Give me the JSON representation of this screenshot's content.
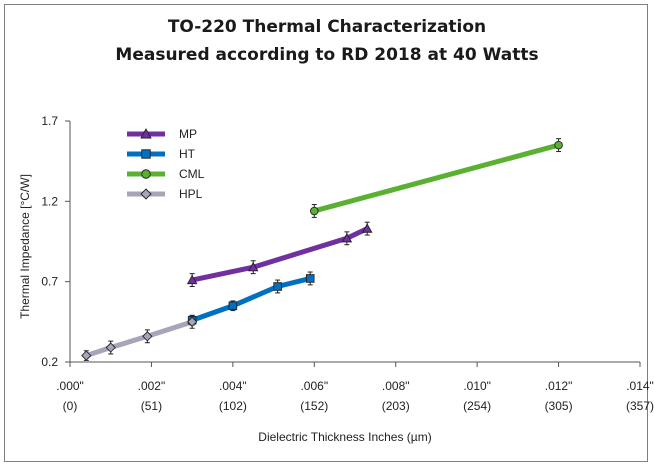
{
  "chart_data": {
    "type": "line",
    "title": "TO-220 Thermal Characterization",
    "subtitle": "Measured according to RD 2018 at 40 Watts",
    "xlabel": "Dielectric Thickness Inches (µm)",
    "ylabel": "Thermal Impedance [°C/W]",
    "xlim": [
      0,
      0.014
    ],
    "ylim": [
      0.2,
      1.7
    ],
    "x_ticks": [
      0.0,
      0.002,
      0.004,
      0.006,
      0.008,
      0.01,
      0.012,
      0.014
    ],
    "x_tick_labels": [
      [
        ".000\"",
        "(0)"
      ],
      [
        ".002\"",
        "(51)"
      ],
      [
        ".004\"",
        "(102)"
      ],
      [
        ".006\"",
        "(152)"
      ],
      [
        ".008\"",
        "(203)"
      ],
      [
        ".010\"",
        "(254)"
      ],
      [
        ".012\"",
        "(305)"
      ],
      [
        ".014\"",
        "(357)"
      ]
    ],
    "y_ticks": [
      0.2,
      0.7,
      1.2,
      1.7
    ],
    "y_tick_labels": [
      "0.2",
      "0.7",
      "1.2",
      "1.7"
    ],
    "grid": false,
    "legend_position": "top-left",
    "series": [
      {
        "name": "MP",
        "color": "#7030a0",
        "marker": "triangle",
        "x": [
          0.003,
          0.0045,
          0.0068,
          0.0073
        ],
        "y": [
          0.71,
          0.79,
          0.97,
          1.03
        ],
        "err": [
          0.04,
          0.04,
          0.04,
          0.04
        ]
      },
      {
        "name": "HT",
        "color": "#0070c0",
        "marker": "square",
        "x": [
          0.003,
          0.004,
          0.0051,
          0.0059
        ],
        "y": [
          0.46,
          0.55,
          0.67,
          0.72
        ],
        "err": [
          0.03,
          0.03,
          0.04,
          0.04
        ]
      },
      {
        "name": "CML",
        "color": "#5ab031",
        "marker": "circle",
        "x": [
          0.006,
          0.012
        ],
        "y": [
          1.14,
          1.55
        ],
        "err": [
          0.04,
          0.04
        ]
      },
      {
        "name": "HPL",
        "color": "#a6a6b8",
        "marker": "diamond",
        "x": [
          0.0004,
          0.001,
          0.0019,
          0.003
        ],
        "y": [
          0.24,
          0.29,
          0.36,
          0.45
        ],
        "err": [
          0.03,
          0.04,
          0.04,
          0.04
        ]
      }
    ]
  }
}
